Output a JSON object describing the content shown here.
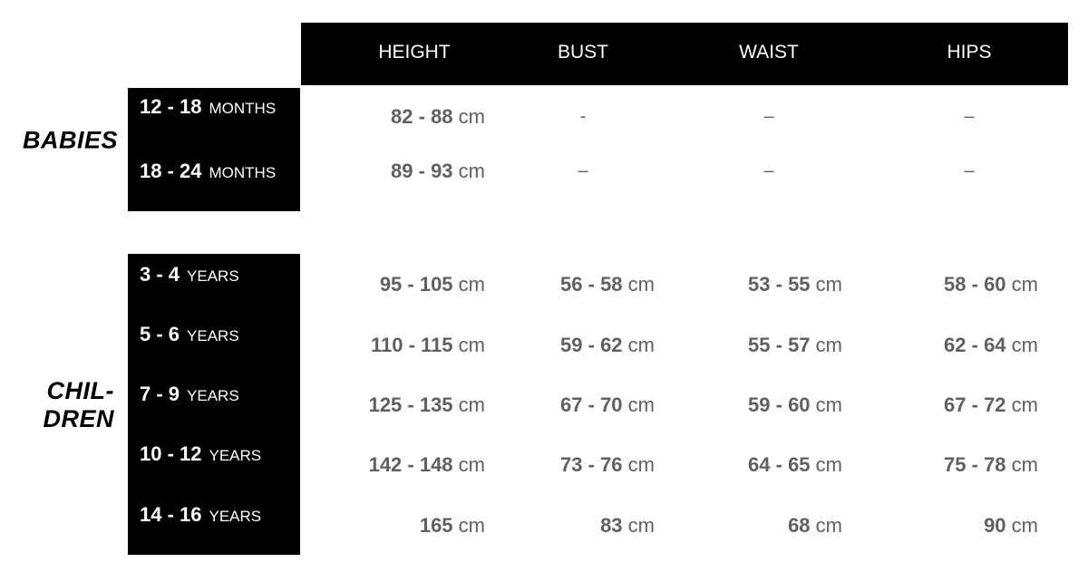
{
  "headers": [
    "HEIGHT",
    "BUST",
    "WAIST",
    "HIPS"
  ],
  "groups": {
    "babies": {
      "label": "BABIES",
      "rows": [
        {
          "range": "12 - 18",
          "unit": "MONTHS",
          "values": [
            {
              "num": "82 - 88",
              "unit": "cm"
            },
            "-",
            "–",
            "–"
          ]
        },
        {
          "range": "18 - 24",
          "unit": "MONTHS",
          "values": [
            {
              "num": "89 - 93",
              "unit": "cm"
            },
            "–",
            "–",
            "–"
          ]
        }
      ]
    },
    "children": {
      "label_line1": "CHIL-",
      "label_line2": "DREN",
      "rows": [
        {
          "range": "3 - 4",
          "unit": "YEARS",
          "values": [
            {
              "num": "95 - 105",
              "unit": "cm"
            },
            {
              "num": "56 - 58",
              "unit": "cm"
            },
            {
              "num": "53 - 55",
              "unit": "cm"
            },
            {
              "num": "58 - 60",
              "unit": "cm"
            }
          ]
        },
        {
          "range": "5 - 6",
          "unit": "YEARS",
          "values": [
            {
              "num": "110 - 115",
              "unit": "cm"
            },
            {
              "num": "59 - 62",
              "unit": "cm"
            },
            {
              "num": "55 - 57",
              "unit": "cm"
            },
            {
              "num": "62 - 64",
              "unit": "cm"
            }
          ]
        },
        {
          "range": "7 - 9",
          "unit": "YEARS",
          "values": [
            {
              "num": "125 - 135",
              "unit": "cm"
            },
            {
              "num": "67 - 70",
              "unit": "cm"
            },
            {
              "num": "59 - 60",
              "unit": "cm"
            },
            {
              "num": "67 - 72",
              "unit": "cm"
            }
          ]
        },
        {
          "range": "10 - 12",
          "unit": "YEARS",
          "values": [
            {
              "num": "142 - 148",
              "unit": "cm"
            },
            {
              "num": "73 - 76",
              "unit": "cm"
            },
            {
              "num": "64 - 65",
              "unit": "cm"
            },
            {
              "num": "75 - 78",
              "unit": "cm"
            }
          ]
        },
        {
          "range": "14 - 16",
          "unit": "YEARS",
          "values": [
            {
              "num": "165",
              "unit": "cm"
            },
            {
              "num": "83",
              "unit": "cm"
            },
            {
              "num": "68",
              "unit": "cm"
            },
            {
              "num": "90",
              "unit": "cm"
            }
          ]
        }
      ]
    }
  }
}
